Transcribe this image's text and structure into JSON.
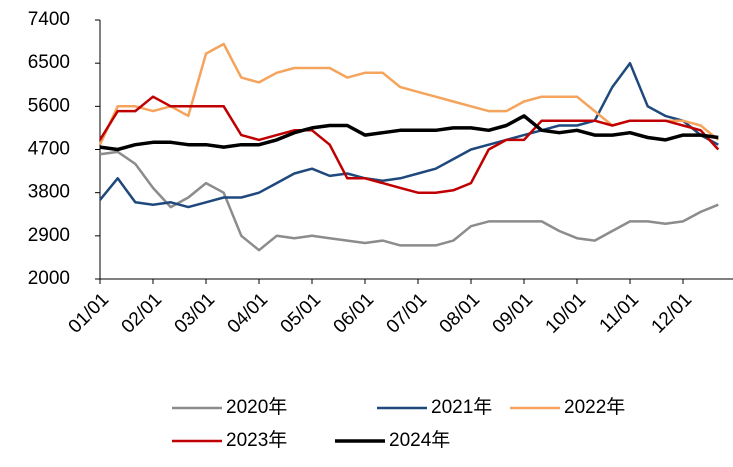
{
  "chart_data": {
    "type": "line",
    "categories": [
      "01/01",
      null,
      null,
      "02/01",
      null,
      null,
      "03/01",
      null,
      null,
      "04/01",
      null,
      null,
      "05/01",
      null,
      null,
      "06/01",
      null,
      null,
      "07/01",
      null,
      null,
      "08/01",
      null,
      null,
      "09/01",
      null,
      null,
      "10/01",
      null,
      null,
      "11/01",
      null,
      null,
      "12/01",
      null,
      null
    ],
    "series": [
      {
        "name": "2020年",
        "color": "#8c8c8c",
        "values": [
          4600,
          4650,
          4400,
          3900,
          3500,
          3700,
          4000,
          3800,
          2900,
          2600,
          2900,
          2850,
          2900,
          2850,
          2800,
          2750,
          2800,
          2700,
          2700,
          2700,
          2800,
          3100,
          3200,
          3200,
          3200,
          3200,
          3000,
          2850,
          2800,
          3000,
          3200,
          3200,
          3150,
          3200,
          3400,
          3550
        ]
      },
      {
        "name": "2021年",
        "color": "#1f497d",
        "values": [
          3650,
          4100,
          3600,
          3550,
          3600,
          3500,
          3600,
          3700,
          3700,
          3800,
          4000,
          4200,
          4300,
          4150,
          4200,
          4100,
          4050,
          4100,
          4200,
          4300,
          4500,
          4700,
          4800,
          4900,
          5000,
          5100,
          5200,
          5200,
          5300,
          6000,
          6500,
          5600,
          5400,
          5300,
          5000,
          4800
        ]
      },
      {
        "name": "2022年",
        "color": "#f4a45c",
        "values": [
          4800,
          5600,
          5600,
          5500,
          5600,
          5400,
          6700,
          6900,
          6200,
          6100,
          6300,
          6400,
          6400,
          6400,
          6200,
          6300,
          6300,
          6000,
          5900,
          5800,
          5700,
          5600,
          5500,
          5500,
          5700,
          5800,
          5800,
          5800,
          5500,
          5200,
          5300,
          5300,
          5300,
          5300,
          5200,
          4900
        ]
      },
      {
        "name": "2023年",
        "color": "#c00000",
        "values": [
          4900,
          5500,
          5500,
          5800,
          5600,
          5600,
          5600,
          5600,
          5000,
          4900,
          5000,
          5100,
          5100,
          4800,
          4100,
          4100,
          4000,
          3900,
          3800,
          3800,
          3850,
          4000,
          4700,
          4900,
          4900,
          5300,
          5300,
          5300,
          5300,
          5200,
          5300,
          5300,
          5300,
          5200,
          5100,
          4700
        ]
      },
      {
        "name": "2024年",
        "color": "#000000",
        "values": [
          4750,
          4700,
          4800,
          4850,
          4850,
          4800,
          4800,
          4750,
          4800,
          4800,
          4900,
          5050,
          5150,
          5200,
          5200,
          5000,
          5050,
          5100,
          5100,
          5100,
          5150,
          5150,
          5100,
          5200,
          5400,
          5100,
          5050,
          5100,
          5000,
          5000,
          5050,
          4950,
          4900,
          5000,
          5000,
          4950
        ]
      }
    ],
    "ylim": [
      2000,
      7400
    ],
    "yticks": [
      2000,
      2900,
      3800,
      4700,
      5600,
      6500,
      7400
    ]
  }
}
